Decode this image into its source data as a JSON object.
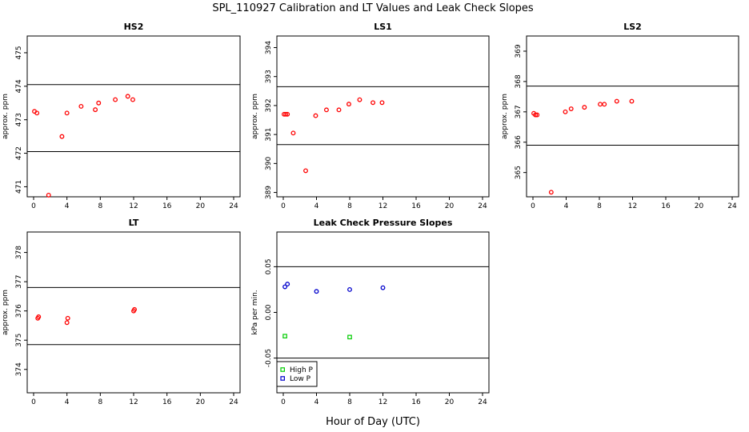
{
  "title": "SPL_110927  Calibration and LT Values and Leak Check Slopes",
  "x_axis_label": "Hour of Day (UTC)",
  "chart_data": [
    {
      "type": "scatter",
      "title": "HS2",
      "ylabel": "approx. ppm",
      "xlim": [
        0,
        24
      ],
      "xticks": [
        0,
        4,
        8,
        12,
        16,
        20,
        24
      ],
      "ylim": [
        470.7,
        475.5
      ],
      "yticks": [
        471,
        472,
        473,
        474,
        475
      ],
      "hlines": [
        474.05,
        472.05
      ],
      "series": [
        {
          "name": "HS2",
          "color": "#ff0000",
          "marker": "circle",
          "x": [
            0.1,
            0.4,
            1.8,
            3.4,
            4.0,
            5.7,
            7.4,
            7.8,
            9.8,
            11.3,
            11.9
          ],
          "y": [
            473.25,
            473.2,
            470.75,
            472.5,
            473.2,
            473.4,
            473.3,
            473.5,
            473.6,
            473.7,
            473.6
          ]
        }
      ]
    },
    {
      "type": "scatter",
      "title": "LS1",
      "ylabel": "approx. ppm",
      "xlim": [
        0,
        24
      ],
      "xticks": [
        0,
        4,
        8,
        12,
        16,
        20,
        24
      ],
      "ylim": [
        388.85,
        394.4
      ],
      "yticks": [
        389,
        390,
        391,
        392,
        393,
        394
      ],
      "hlines": [
        392.65,
        390.65
      ],
      "series": [
        {
          "name": "LS1",
          "color": "#ff0000",
          "marker": "circle",
          "x": [
            0.1,
            0.3,
            0.5,
            1.2,
            2.7,
            3.9,
            5.2,
            6.7,
            7.9,
            9.2,
            10.8,
            11.9
          ],
          "y": [
            391.7,
            391.7,
            391.7,
            391.05,
            389.75,
            391.65,
            391.85,
            391.85,
            392.05,
            392.2,
            392.1,
            392.1
          ]
        }
      ]
    },
    {
      "type": "scatter",
      "title": "LS2",
      "ylabel": "approx. ppm",
      "xlim": [
        0,
        24
      ],
      "xticks": [
        0,
        4,
        8,
        12,
        16,
        20,
        24
      ],
      "ylim": [
        364.2,
        369.5
      ],
      "yticks": [
        365,
        366,
        367,
        368,
        369
      ],
      "hlines": [
        367.85,
        365.9
      ],
      "series": [
        {
          "name": "LS2",
          "color": "#ff0000",
          "marker": "circle",
          "x": [
            0.1,
            0.3,
            0.5,
            2.2,
            3.9,
            4.6,
            6.2,
            8.1,
            8.6,
            10.1,
            11.9
          ],
          "y": [
            366.95,
            366.9,
            366.9,
            364.35,
            367.0,
            367.1,
            367.15,
            367.25,
            367.25,
            367.35,
            367.35
          ]
        }
      ]
    },
    {
      "type": "scatter",
      "title": "LT",
      "ylabel": "approx. ppm",
      "xlim": [
        0,
        24
      ],
      "xticks": [
        0,
        4,
        8,
        12,
        16,
        20,
        24
      ],
      "ylim": [
        373.2,
        378.7
      ],
      "yticks": [
        374,
        375,
        376,
        377,
        378
      ],
      "hlines": [
        376.8,
        374.85
      ],
      "series": [
        {
          "name": "LT",
          "color": "#ff0000",
          "marker": "circle",
          "x": [
            0.5,
            0.6,
            4.0,
            4.1,
            12.0,
            12.1
          ],
          "y": [
            375.75,
            375.8,
            375.6,
            375.75,
            376.0,
            376.05
          ]
        }
      ]
    },
    {
      "type": "scatter",
      "title": "Leak Check Pressure Slopes",
      "ylabel": "kPa per min.",
      "xlim": [
        0,
        24
      ],
      "xticks": [
        0,
        4,
        8,
        12,
        16,
        20,
        24
      ],
      "ylim": [
        -0.088,
        0.088
      ],
      "ytick_labels": [
        "-0.05",
        "0.00",
        "0.05"
      ],
      "yticks": [
        -0.05,
        0.0,
        0.05
      ],
      "hlines": [
        0.05,
        -0.05
      ],
      "legend": {
        "position": "bottom-left"
      },
      "series": [
        {
          "name": "High P",
          "color": "#00cc00",
          "marker": "square",
          "x": [
            0.2,
            8.0
          ],
          "y": [
            -0.026,
            -0.027
          ]
        },
        {
          "name": "Low P",
          "color": "#0000cc",
          "marker": "circle",
          "x": [
            0.2,
            0.5,
            4.0,
            8.0,
            12.0
          ],
          "y": [
            0.028,
            0.031,
            0.023,
            0.025,
            0.027
          ]
        }
      ]
    }
  ]
}
